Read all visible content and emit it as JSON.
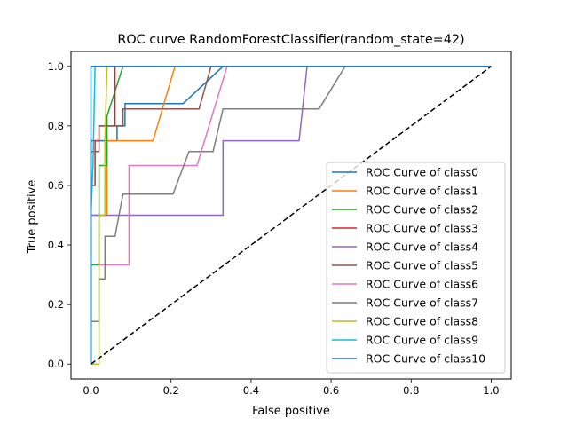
{
  "chart_data": {
    "type": "line",
    "title": "ROC curve RandomForestClassifier(random_state=42)",
    "xlabel": "False positive",
    "ylabel": "True positive",
    "xlim": [
      -0.05,
      1.05
    ],
    "ylim": [
      -0.05,
      1.05
    ],
    "xticks": [
      0.0,
      0.2,
      0.4,
      0.6,
      0.8,
      1.0
    ],
    "yticks": [
      0.0,
      0.2,
      0.4,
      0.6,
      0.8,
      1.0
    ],
    "xtick_labels": [
      "0.0",
      "0.2",
      "0.4",
      "0.6",
      "0.8",
      "1.0"
    ],
    "ytick_labels": [
      "0.0",
      "0.2",
      "0.4",
      "0.6",
      "0.8",
      "1.0"
    ],
    "grid": false,
    "legend_position": "center-right",
    "series": [
      {
        "name": "ROC Curve of class0",
        "color": "#1f77b4",
        "x": [
          0,
          0,
          0.065,
          0.065,
          0.085,
          0.085,
          0.23,
          0.33,
          1
        ],
        "y": [
          0,
          0.75,
          0.75,
          0.8,
          0.8,
          0.875,
          0.875,
          1,
          1
        ]
      },
      {
        "name": "ROC Curve of class1",
        "color": "#ff7f0e",
        "x": [
          0,
          0,
          0.04,
          0.04,
          0.155,
          0.21,
          1
        ],
        "y": [
          0,
          0.5,
          0.5,
          0.75,
          0.75,
          1,
          1
        ]
      },
      {
        "name": "ROC Curve of class2",
        "color": "#2ca02c",
        "x": [
          0,
          0,
          0.02,
          0.02,
          0.04,
          0.04,
          0.08,
          1
        ],
        "y": [
          0,
          0.333,
          0.333,
          0.667,
          0.667,
          0.833,
          1,
          1
        ]
      },
      {
        "name": "ROC Curve of class3",
        "color": "#d62728",
        "x": [
          0,
          0,
          0.01,
          0.01,
          0.02,
          0.02,
          0.06,
          0.06,
          1
        ],
        "y": [
          0,
          0.6,
          0.6,
          0.75,
          0.75,
          0.8,
          0.8,
          1,
          1
        ]
      },
      {
        "name": "ROC Curve of class4",
        "color": "#9467bd",
        "x": [
          0,
          0.33,
          0.33,
          0.52,
          0.54,
          1
        ],
        "y": [
          0.5,
          0.5,
          0.75,
          0.75,
          1,
          1
        ]
      },
      {
        "name": "ROC Curve of class5",
        "color": "#8c564b",
        "x": [
          0,
          0,
          0.02,
          0.02,
          0.08,
          0.08,
          0.27,
          0.3,
          1
        ],
        "y": [
          0,
          0.714,
          0.714,
          0.8,
          0.8,
          0.857,
          0.857,
          1,
          1
        ]
      },
      {
        "name": "ROC Curve of class6",
        "color": "#e377c2",
        "x": [
          0.02,
          0.095,
          0.095,
          0.265,
          0.34,
          1
        ],
        "y": [
          0.333,
          0.333,
          0.667,
          0.667,
          1,
          1
        ]
      },
      {
        "name": "ROC Curve of class7",
        "color": "#7f7f7f",
        "x": [
          0,
          0,
          0.02,
          0.02,
          0.035,
          0.035,
          0.06,
          0.08,
          0.205,
          0.245,
          0.305,
          0.33,
          0.57,
          0.635,
          1
        ],
        "y": [
          0,
          0.143,
          0.143,
          0.286,
          0.286,
          0.429,
          0.429,
          0.571,
          0.571,
          0.714,
          0.714,
          0.857,
          0.857,
          1,
          1
        ]
      },
      {
        "name": "ROC Curve of class8",
        "color": "#bcbd22",
        "x": [
          0,
          0.02,
          0.02,
          0.035,
          0.035,
          0.04,
          1
        ],
        "y": [
          0,
          0,
          0.5,
          0.5,
          0.75,
          1,
          1
        ]
      },
      {
        "name": "ROC Curve of class9",
        "color": "#17becf",
        "x": [
          0,
          0,
          0.005,
          0.01,
          1
        ],
        "y": [
          0,
          0.5,
          0.667,
          1,
          1
        ]
      },
      {
        "name": "ROC Curve of class10",
        "color": "#1f77b4",
        "x": [
          0,
          0,
          1
        ],
        "y": [
          0,
          1,
          1
        ]
      }
    ],
    "reference_line": {
      "x": [
        0,
        1
      ],
      "y": [
        0,
        1
      ],
      "color": "#000000",
      "style": "dashed"
    }
  }
}
